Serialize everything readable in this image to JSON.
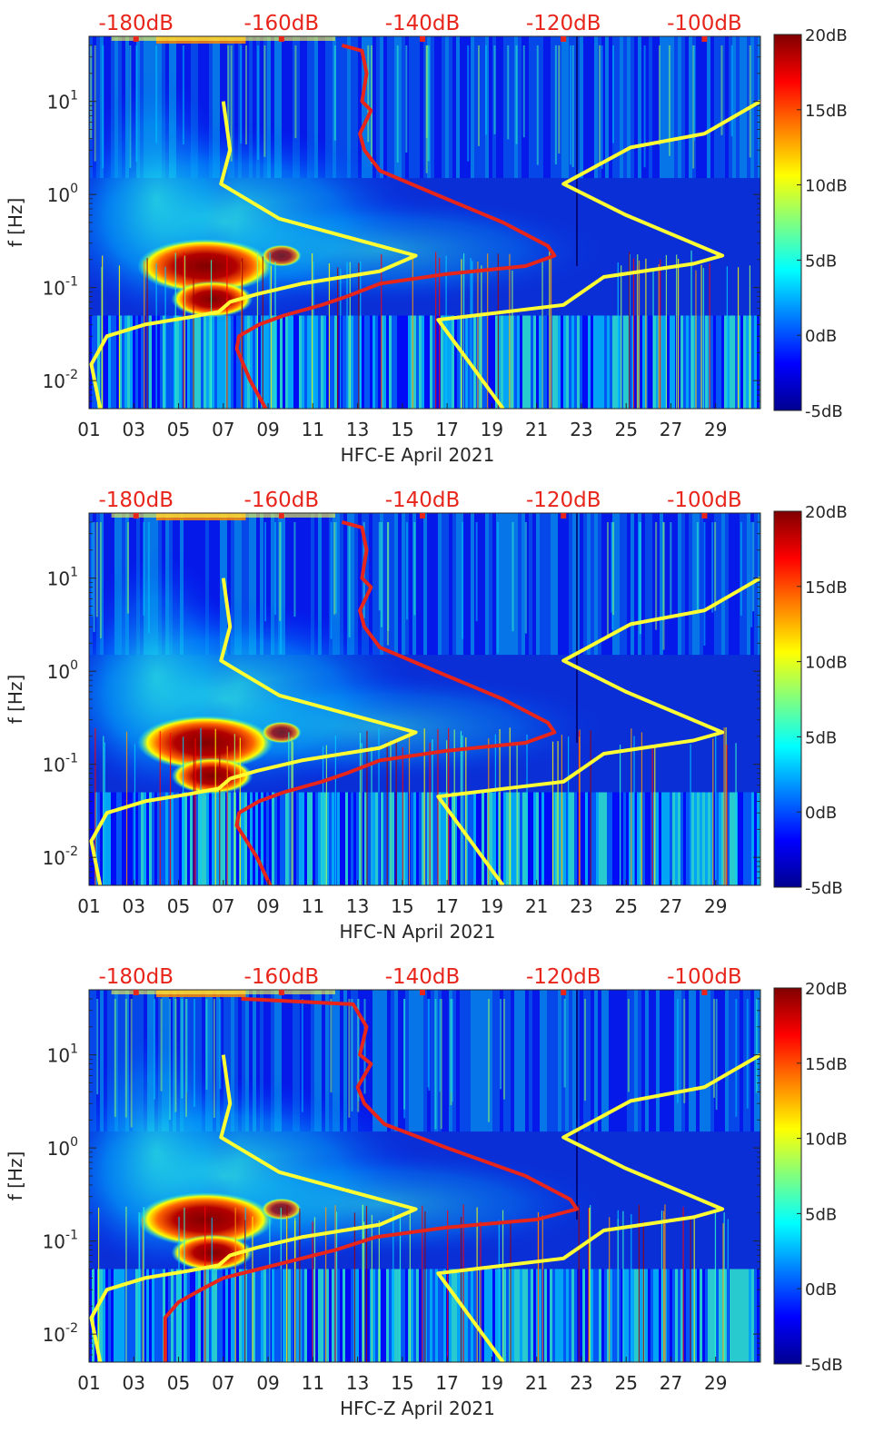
{
  "chart_data": [
    {
      "type": "heatmap",
      "xlabel": "HFC-E April 2021",
      "ylabel": "f [Hz]",
      "x_ticks": [
        "01",
        "03",
        "05",
        "07",
        "09",
        "11",
        "13",
        "15",
        "17",
        "19",
        "21",
        "23",
        "25",
        "27",
        "29"
      ],
      "y_ticks": [
        "10^-2",
        "10^-1",
        "10^0",
        "10^1"
      ],
      "top_ticks": [
        "-180dB",
        "-160dB",
        "-140dB",
        "-120dB",
        "-100dB"
      ],
      "colorbar_ticks": [
        "-5dB",
        "0dB",
        "5dB",
        "10dB",
        "15dB",
        "20dB"
      ],
      "colorbar_range": [
        -5,
        20
      ],
      "y_range": [
        0.005,
        50
      ],
      "x_range": [
        1,
        31
      ],
      "series": [
        {
          "color": "#ffff33",
          "points": [
            [
              7.0,
              10
            ],
            [
              7.3,
              3
            ],
            [
              6.9,
              1.3
            ],
            [
              9.5,
              0.55
            ],
            [
              15.6,
              0.22
            ],
            [
              14,
              0.15
            ],
            [
              10.5,
              0.11
            ],
            [
              8.5,
              0.085
            ],
            [
              7.3,
              0.07
            ],
            [
              6.8,
              0.055
            ],
            [
              5.5,
              0.048
            ],
            [
              3.5,
              0.04
            ],
            [
              1.8,
              0.03
            ],
            [
              1.1,
              0.015
            ],
            [
              1.5,
              0.005
            ]
          ]
        },
        {
          "color": "#ffff33",
          "points": [
            [
              31,
              10
            ],
            [
              28.5,
              4.5
            ],
            [
              25.2,
              3.2
            ],
            [
              22.2,
              1.3
            ],
            [
              25,
              0.6
            ],
            [
              29.3,
              0.22
            ],
            [
              28,
              0.18
            ],
            [
              24,
              0.13
            ],
            [
              22.2,
              0.065
            ],
            [
              16.6,
              0.045
            ],
            [
              19.5,
              0.005
            ]
          ]
        },
        {
          "color": "#e8251b",
          "points": [
            [
              12.3,
              40
            ],
            [
              13.2,
              35
            ],
            [
              13.4,
              20
            ],
            [
              13.2,
              10
            ],
            [
              13.6,
              8
            ],
            [
              13.1,
              4.5
            ],
            [
              13.3,
              3
            ],
            [
              14,
              1.8
            ],
            [
              16.5,
              1.0
            ],
            [
              19.5,
              0.5
            ],
            [
              21.5,
              0.28
            ],
            [
              21.8,
              0.22
            ],
            [
              20.5,
              0.17
            ],
            [
              17,
              0.14
            ],
            [
              14,
              0.11
            ],
            [
              12.5,
              0.08
            ],
            [
              11.4,
              0.065
            ],
            [
              9.7,
              0.05
            ],
            [
              8.6,
              0.04
            ],
            [
              7.7,
              0.03
            ],
            [
              7.6,
              0.022
            ],
            [
              8.2,
              0.01
            ],
            [
              8.9,
              0.005
            ]
          ]
        }
      ]
    },
    {
      "type": "heatmap",
      "xlabel": "HFC-N April 2021",
      "ylabel": "f [Hz]",
      "x_ticks": [
        "01",
        "03",
        "05",
        "07",
        "09",
        "11",
        "13",
        "15",
        "17",
        "19",
        "21",
        "23",
        "25",
        "27",
        "29"
      ],
      "y_ticks": [
        "10^-2",
        "10^-1",
        "10^0",
        "10^1"
      ],
      "top_ticks": [
        "-180dB",
        "-160dB",
        "-140dB",
        "-120dB",
        "-100dB"
      ],
      "colorbar_ticks": [
        "-5dB",
        "0dB",
        "5dB",
        "10dB",
        "15dB",
        "20dB"
      ],
      "colorbar_range": [
        -5,
        20
      ],
      "y_range": [
        0.005,
        50
      ],
      "x_range": [
        1,
        31
      ],
      "series": [
        {
          "color": "#ffff33",
          "points": [
            [
              7.0,
              10
            ],
            [
              7.3,
              3
            ],
            [
              6.9,
              1.3
            ],
            [
              9.5,
              0.55
            ],
            [
              15.6,
              0.22
            ],
            [
              14,
              0.15
            ],
            [
              10.5,
              0.11
            ],
            [
              8.5,
              0.085
            ],
            [
              7.3,
              0.07
            ],
            [
              6.8,
              0.055
            ],
            [
              5.5,
              0.048
            ],
            [
              3.5,
              0.04
            ],
            [
              1.8,
              0.03
            ],
            [
              1.1,
              0.015
            ],
            [
              1.5,
              0.005
            ]
          ]
        },
        {
          "color": "#ffff33",
          "points": [
            [
              31,
              10
            ],
            [
              28.5,
              4.5
            ],
            [
              25.2,
              3.2
            ],
            [
              22.2,
              1.3
            ],
            [
              25,
              0.6
            ],
            [
              29.3,
              0.22
            ],
            [
              28,
              0.18
            ],
            [
              24,
              0.13
            ],
            [
              22.2,
              0.065
            ],
            [
              16.6,
              0.045
            ],
            [
              19.5,
              0.005
            ]
          ]
        },
        {
          "color": "#e8251b",
          "points": [
            [
              12.3,
              40
            ],
            [
              13.2,
              35
            ],
            [
              13.4,
              20
            ],
            [
              13.2,
              10
            ],
            [
              13.6,
              8
            ],
            [
              13.1,
              4.5
            ],
            [
              13.3,
              3
            ],
            [
              14,
              1.8
            ],
            [
              16.5,
              1.0
            ],
            [
              19.5,
              0.5
            ],
            [
              21.5,
              0.28
            ],
            [
              21.8,
              0.22
            ],
            [
              20.5,
              0.17
            ],
            [
              17,
              0.14
            ],
            [
              14,
              0.11
            ],
            [
              12.5,
              0.08
            ],
            [
              11.4,
              0.065
            ],
            [
              9.7,
              0.05
            ],
            [
              8.6,
              0.04
            ],
            [
              7.7,
              0.03
            ],
            [
              7.6,
              0.022
            ],
            [
              8.5,
              0.01
            ],
            [
              9.1,
              0.005
            ]
          ]
        }
      ]
    },
    {
      "type": "heatmap",
      "xlabel": "HFC-Z April 2021",
      "ylabel": "f [Hz]",
      "x_ticks": [
        "01",
        "03",
        "05",
        "07",
        "09",
        "11",
        "13",
        "15",
        "17",
        "19",
        "21",
        "23",
        "25",
        "27",
        "29"
      ],
      "y_ticks": [
        "10^-2",
        "10^-1",
        "10^0",
        "10^1"
      ],
      "top_ticks": [
        "-180dB",
        "-160dB",
        "-140dB",
        "-120dB",
        "-100dB"
      ],
      "colorbar_ticks": [
        "-5dB",
        "0dB",
        "5dB",
        "10dB",
        "15dB",
        "20dB"
      ],
      "colorbar_range": [
        -5,
        20
      ],
      "y_range": [
        0.005,
        50
      ],
      "x_range": [
        1,
        31
      ],
      "series": [
        {
          "color": "#ffff33",
          "points": [
            [
              7.0,
              10
            ],
            [
              7.3,
              3
            ],
            [
              6.9,
              1.3
            ],
            [
              9.5,
              0.55
            ],
            [
              15.6,
              0.22
            ],
            [
              14,
              0.15
            ],
            [
              10.5,
              0.11
            ],
            [
              8.5,
              0.085
            ],
            [
              7.3,
              0.07
            ],
            [
              6.8,
              0.055
            ],
            [
              5.5,
              0.048
            ],
            [
              3.5,
              0.04
            ],
            [
              1.8,
              0.03
            ],
            [
              1.1,
              0.015
            ],
            [
              1.5,
              0.005
            ]
          ]
        },
        {
          "color": "#ffff33",
          "points": [
            [
              31,
              10
            ],
            [
              28.5,
              4.5
            ],
            [
              25.2,
              3.2
            ],
            [
              22.2,
              1.3
            ],
            [
              25,
              0.6
            ],
            [
              29.3,
              0.22
            ],
            [
              28,
              0.18
            ],
            [
              24,
              0.13
            ],
            [
              22.2,
              0.065
            ],
            [
              16.6,
              0.045
            ],
            [
              19.5,
              0.005
            ]
          ]
        },
        {
          "color": "#e8251b",
          "points": [
            [
              7.8,
              40
            ],
            [
              12.8,
              35
            ],
            [
              13.4,
              20
            ],
            [
              13.1,
              10
            ],
            [
              13.6,
              8
            ],
            [
              13.0,
              4.5
            ],
            [
              13.3,
              3
            ],
            [
              14.2,
              1.8
            ],
            [
              17,
              1.0
            ],
            [
              20.5,
              0.5
            ],
            [
              22.5,
              0.28
            ],
            [
              22.8,
              0.22
            ],
            [
              21,
              0.17
            ],
            [
              17,
              0.14
            ],
            [
              13.8,
              0.11
            ],
            [
              12.0,
              0.08
            ],
            [
              10.5,
              0.065
            ],
            [
              8.6,
              0.05
            ],
            [
              7.0,
              0.04
            ],
            [
              6.0,
              0.03
            ],
            [
              5.0,
              0.022
            ],
            [
              4.4,
              0.015
            ],
            [
              4.4,
              0.005
            ]
          ]
        }
      ]
    }
  ]
}
